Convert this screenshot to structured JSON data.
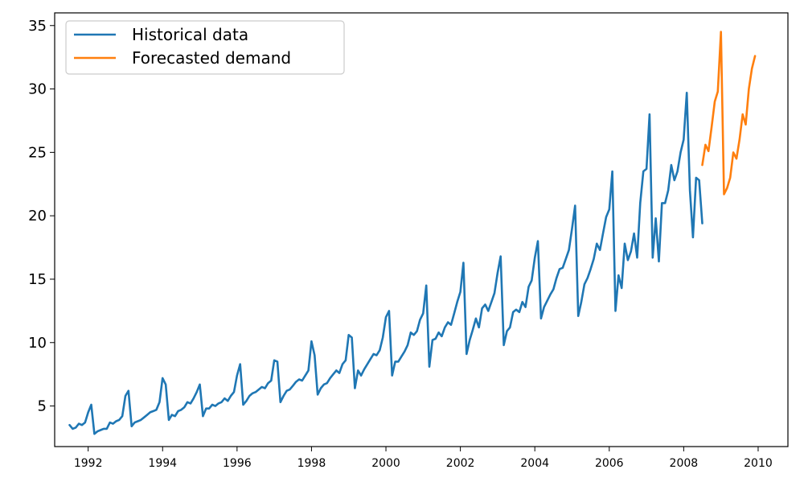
{
  "chart_data": {
    "type": "line",
    "title": "",
    "xlabel": "",
    "ylabel": "",
    "xlim": [
      1991.1,
      2010.8
    ],
    "ylim": [
      1.8,
      36.0
    ],
    "xticks": [
      1992,
      1994,
      1996,
      1998,
      2000,
      2002,
      2004,
      2006,
      2008,
      2010
    ],
    "xtick_labels": [
      "1992",
      "1994",
      "1996",
      "1998",
      "2000",
      "2002",
      "2004",
      "2006",
      "2008",
      "2010"
    ],
    "yticks": [
      5,
      10,
      15,
      20,
      25,
      30,
      35
    ],
    "ytick_labels": [
      "5",
      "10",
      "15",
      "20",
      "25",
      "30",
      "35"
    ],
    "grid": false,
    "legend_position": "top-left",
    "series": [
      {
        "name": "Historical data",
        "color": "#1f77b4",
        "start": 1991.5,
        "step": 0.08333,
        "values": [
          3.5,
          3.2,
          3.3,
          3.6,
          3.5,
          3.7,
          4.5,
          5.1,
          2.8,
          3.0,
          3.1,
          3.2,
          3.2,
          3.7,
          3.6,
          3.8,
          3.9,
          4.2,
          5.8,
          6.2,
          3.4,
          3.7,
          3.8,
          3.9,
          4.1,
          4.3,
          4.5,
          4.6,
          4.7,
          5.3,
          7.2,
          6.7,
          3.9,
          4.3,
          4.2,
          4.6,
          4.7,
          4.9,
          5.3,
          5.2,
          5.6,
          6.1,
          6.7,
          4.2,
          4.8,
          4.8,
          5.1,
          5.0,
          5.2,
          5.3,
          5.6,
          5.4,
          5.8,
          6.1,
          7.4,
          8.3,
          5.1,
          5.4,
          5.8,
          6.0,
          6.1,
          6.3,
          6.5,
          6.4,
          6.8,
          7.0,
          8.6,
          8.5,
          5.3,
          5.8,
          6.2,
          6.3,
          6.6,
          6.9,
          7.1,
          7.0,
          7.4,
          7.8,
          10.1,
          9.0,
          5.9,
          6.4,
          6.7,
          6.8,
          7.2,
          7.5,
          7.8,
          7.6,
          8.3,
          8.6,
          10.6,
          10.4,
          6.4,
          7.8,
          7.4,
          7.9,
          8.3,
          8.7,
          9.1,
          9.0,
          9.4,
          10.4,
          12.0,
          12.5,
          7.4,
          8.5,
          8.5,
          8.9,
          9.3,
          9.8,
          10.8,
          10.6,
          10.9,
          11.8,
          12.3,
          14.5,
          8.1,
          10.2,
          10.3,
          10.8,
          10.5,
          11.2,
          11.6,
          11.4,
          12.3,
          13.2,
          14.0,
          16.3,
          9.1,
          10.2,
          11.0,
          11.9,
          11.2,
          12.7,
          13.0,
          12.5,
          13.2,
          13.9,
          15.5,
          16.8,
          9.8,
          10.9,
          11.2,
          12.4,
          12.6,
          12.4,
          13.2,
          12.8,
          14.4,
          14.9,
          16.7,
          18.0,
          11.9,
          12.8,
          13.3,
          13.8,
          14.2,
          15.1,
          15.8,
          15.9,
          16.6,
          17.3,
          19.0,
          20.8,
          12.1,
          13.2,
          14.6,
          15.1,
          15.8,
          16.6,
          17.8,
          17.3,
          18.6,
          19.9,
          20.5,
          23.5,
          12.5,
          15.3,
          14.3,
          17.8,
          16.5,
          17.2,
          18.6,
          16.7,
          21.0,
          23.5,
          23.7,
          28.0,
          16.7,
          19.8,
          16.4,
          21.0,
          21.0,
          22.0,
          24.0,
          22.8,
          23.5,
          25.0,
          26.0,
          29.7,
          22.0,
          18.3,
          23.0,
          22.8,
          19.4
        ]
      },
      {
        "name": "Forecasted demand",
        "color": "#ff7f0e",
        "start": 2008.5,
        "step": 0.08333,
        "values": [
          24.0,
          25.6,
          25.1,
          27.0,
          29.0,
          29.8,
          34.5,
          21.7,
          22.2,
          23.0,
          25.0,
          24.5,
          26.0,
          28.0,
          27.2,
          30.0,
          31.6,
          32.6
        ]
      }
    ]
  }
}
